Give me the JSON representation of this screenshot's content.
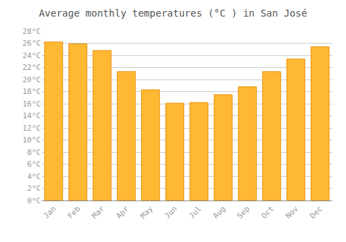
{
  "chart_data": {
    "type": "bar",
    "title": "Average monthly temperatures (°C ) in San José",
    "categories": [
      "Jan",
      "Feb",
      "Mar",
      "Apr",
      "May",
      "Jun",
      "Jul",
      "Aug",
      "Sep",
      "Oct",
      "Nov",
      "Dec"
    ],
    "values": [
      26.2,
      25.9,
      24.8,
      21.3,
      18.3,
      16.1,
      16.2,
      17.5,
      18.8,
      21.3,
      23.4,
      25.4
    ],
    "color": "#FFB833",
    "ylim": [
      0,
      28
    ],
    "yticks": [
      {
        "value": 0,
        "label": "0°C"
      },
      {
        "value": 2,
        "label": "2°C"
      },
      {
        "value": 4,
        "label": "4°C"
      },
      {
        "value": 6,
        "label": "6°C"
      },
      {
        "value": 8,
        "label": "8°C"
      },
      {
        "value": 10,
        "label": "10°C"
      },
      {
        "value": 12,
        "label": "12°C"
      },
      {
        "value": 14,
        "label": "14°C"
      },
      {
        "value": 16,
        "label": "16°C"
      },
      {
        "value": 18,
        "label": "18°C"
      },
      {
        "value": 20,
        "label": "20°C"
      },
      {
        "value": 22,
        "label": "22°C"
      },
      {
        "value": 24,
        "label": "24°C"
      },
      {
        "value": 26,
        "label": "26°C"
      },
      {
        "value": 28,
        "label": "28°C"
      }
    ],
    "grid": true
  }
}
